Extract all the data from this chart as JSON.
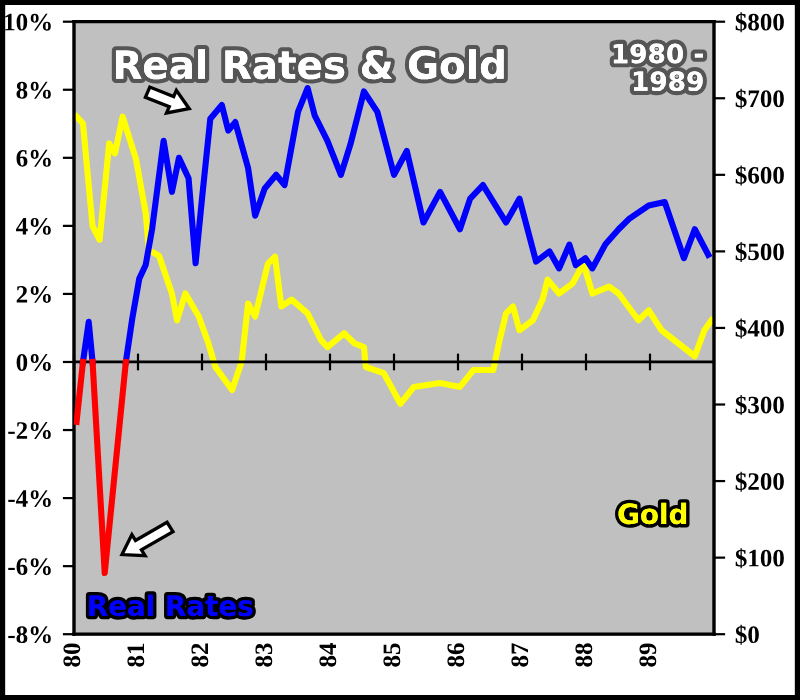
{
  "chart_data": {
    "type": "line",
    "title": "Real Rates & Gold",
    "subtitle": "1980 -\n1989",
    "series": [
      {
        "name": "Real Rates",
        "color": "#0000ff",
        "x": [
          1980.14,
          1980.23,
          1980.29,
          1980.5,
          1980.81,
          1980.91,
          1981.02,
          1981.12,
          1981.22,
          1981.4,
          1981.53,
          1981.64,
          1981.79,
          1981.9,
          1982.0,
          1982.13,
          1982.31,
          1982.41,
          1982.52,
          1982.72,
          1982.83,
          1982.98,
          1983.16,
          1983.29,
          1983.5,
          1983.65,
          1983.76,
          1983.96,
          1984.17,
          1984.32,
          1984.53,
          1984.74,
          1985.0,
          1985.2,
          1985.46,
          1985.72,
          1986.03,
          1986.19,
          1986.39,
          1986.75,
          1986.96,
          1987.22,
          1987.43,
          1987.58,
          1987.74,
          1987.84,
          1987.99,
          1988.1,
          1988.3,
          1988.51,
          1988.67,
          1988.98,
          1989.23,
          1989.53,
          1989.7,
          1989.91
        ],
        "values": [
          0,
          1.18,
          0,
          null,
          0,
          1.27,
          2.45,
          2.85,
          3.9,
          6.5,
          5.0,
          6.0,
          5.4,
          2.9,
          4.8,
          7.15,
          7.55,
          6.8,
          7.05,
          5.7,
          4.3,
          5.1,
          5.5,
          5.2,
          7.35,
          8.05,
          7.25,
          6.5,
          5.5,
          6.4,
          7.95,
          7.35,
          5.5,
          6.2,
          4.1,
          5.0,
          3.9,
          4.8,
          5.2,
          4.1,
          4.8,
          2.95,
          3.25,
          2.75,
          3.45,
          2.85,
          3.05,
          2.75,
          3.45,
          3.9,
          4.2,
          4.6,
          4.7,
          3.05,
          3.9,
          3.15
        ]
      },
      {
        "color": "#ff0000",
        "x": [
          1980.04,
          1980.14,
          1980.2,
          1980.29,
          1980.48,
          1980.81
        ],
        "values": [
          -1.76,
          0,
          null,
          0,
          -6.2,
          0
        ]
      },
      {
        "name": "Gold",
        "color": "#ffff00",
        "axis": "y2",
        "x": [
          1980.04,
          1980.14,
          1980.29,
          1980.4,
          1980.55,
          1980.64,
          1980.76,
          1980.97,
          1981.12,
          1981.17,
          1981.33,
          1981.53,
          1981.61,
          1981.74,
          1981.95,
          1982.1,
          1982.21,
          1982.47,
          1982.62,
          1982.72,
          1982.83,
          1983.03,
          1983.14,
          1983.24,
          1983.4,
          1983.65,
          1983.86,
          1983.96,
          1984.22,
          1984.38,
          1984.53,
          1984.56,
          1984.84,
          1985.1,
          1985.31,
          1985.72,
          1986.03,
          1986.24,
          1986.55,
          1986.65,
          1986.75,
          1986.86,
          1986.96,
          1987.17,
          1987.32,
          1987.4,
          1987.58,
          1987.79,
          1987.96,
          1988.1,
          1988.36,
          1988.51,
          1988.82,
          1988.98,
          1989.18,
          1989.44,
          1989.7,
          1989.85,
          1989.96
        ],
        "values": [
          676,
          667,
          533,
          515,
          641,
          628,
          676,
          620,
          550,
          502,
          494,
          445,
          410,
          445,
          415,
          380,
          349,
          319,
          356,
          432,
          415,
          484,
          493,
          428,
          437,
          419,
          384,
          375,
          393,
          380,
          375,
          349,
          341,
          301,
          323,
          328,
          323,
          345,
          345,
          384,
          419,
          428,
          397,
          410,
          437,
          463,
          445,
          458,
          484,
          445,
          454,
          445,
          410,
          423,
          397,
          380,
          363,
          397,
          410
        ]
      }
    ],
    "xlim": [
      1980,
      1990
    ],
    "xticks": [
      {
        "value": 1980,
        "label": "80"
      },
      {
        "value": 1981,
        "label": "81"
      },
      {
        "value": 1982,
        "label": "82"
      },
      {
        "value": 1983,
        "label": "83"
      },
      {
        "value": 1984,
        "label": "84"
      },
      {
        "value": 1985,
        "label": "85"
      },
      {
        "value": 1986,
        "label": "86"
      },
      {
        "value": 1987,
        "label": "87"
      },
      {
        "value": 1988,
        "label": "88"
      },
      {
        "value": 1989,
        "label": "89"
      }
    ],
    "ylim": [
      -8,
      10
    ],
    "yticks": [
      {
        "value": -8,
        "label": "-8%"
      },
      {
        "value": -6,
        "label": "-6%"
      },
      {
        "value": -4,
        "label": "-4%"
      },
      {
        "value": -2,
        "label": "-2%"
      },
      {
        "value": 0,
        "label": "0%"
      },
      {
        "value": 2,
        "label": "2%"
      },
      {
        "value": 4,
        "label": "4%"
      },
      {
        "value": 6,
        "label": "6%"
      },
      {
        "value": 8,
        "label": "8%"
      },
      {
        "value": 10,
        "label": "10%"
      }
    ],
    "y2lim": [
      0,
      800
    ],
    "y2ticks": [
      {
        "value": 0,
        "label": "$0"
      },
      {
        "value": 100,
        "label": "$100"
      },
      {
        "value": 200,
        "label": "$200"
      },
      {
        "value": 300,
        "label": "$300"
      },
      {
        "value": 400,
        "label": "$400"
      },
      {
        "value": 500,
        "label": "$500"
      },
      {
        "value": 600,
        "label": "$600"
      },
      {
        "value": 700,
        "label": "$700"
      },
      {
        "value": 800,
        "label": "$800"
      }
    ],
    "ref_lines": [
      {
        "axis": "y",
        "value": 0,
        "color": "#000000"
      }
    ],
    "grid": false,
    "marker": "none",
    "line_style": "solid"
  }
}
